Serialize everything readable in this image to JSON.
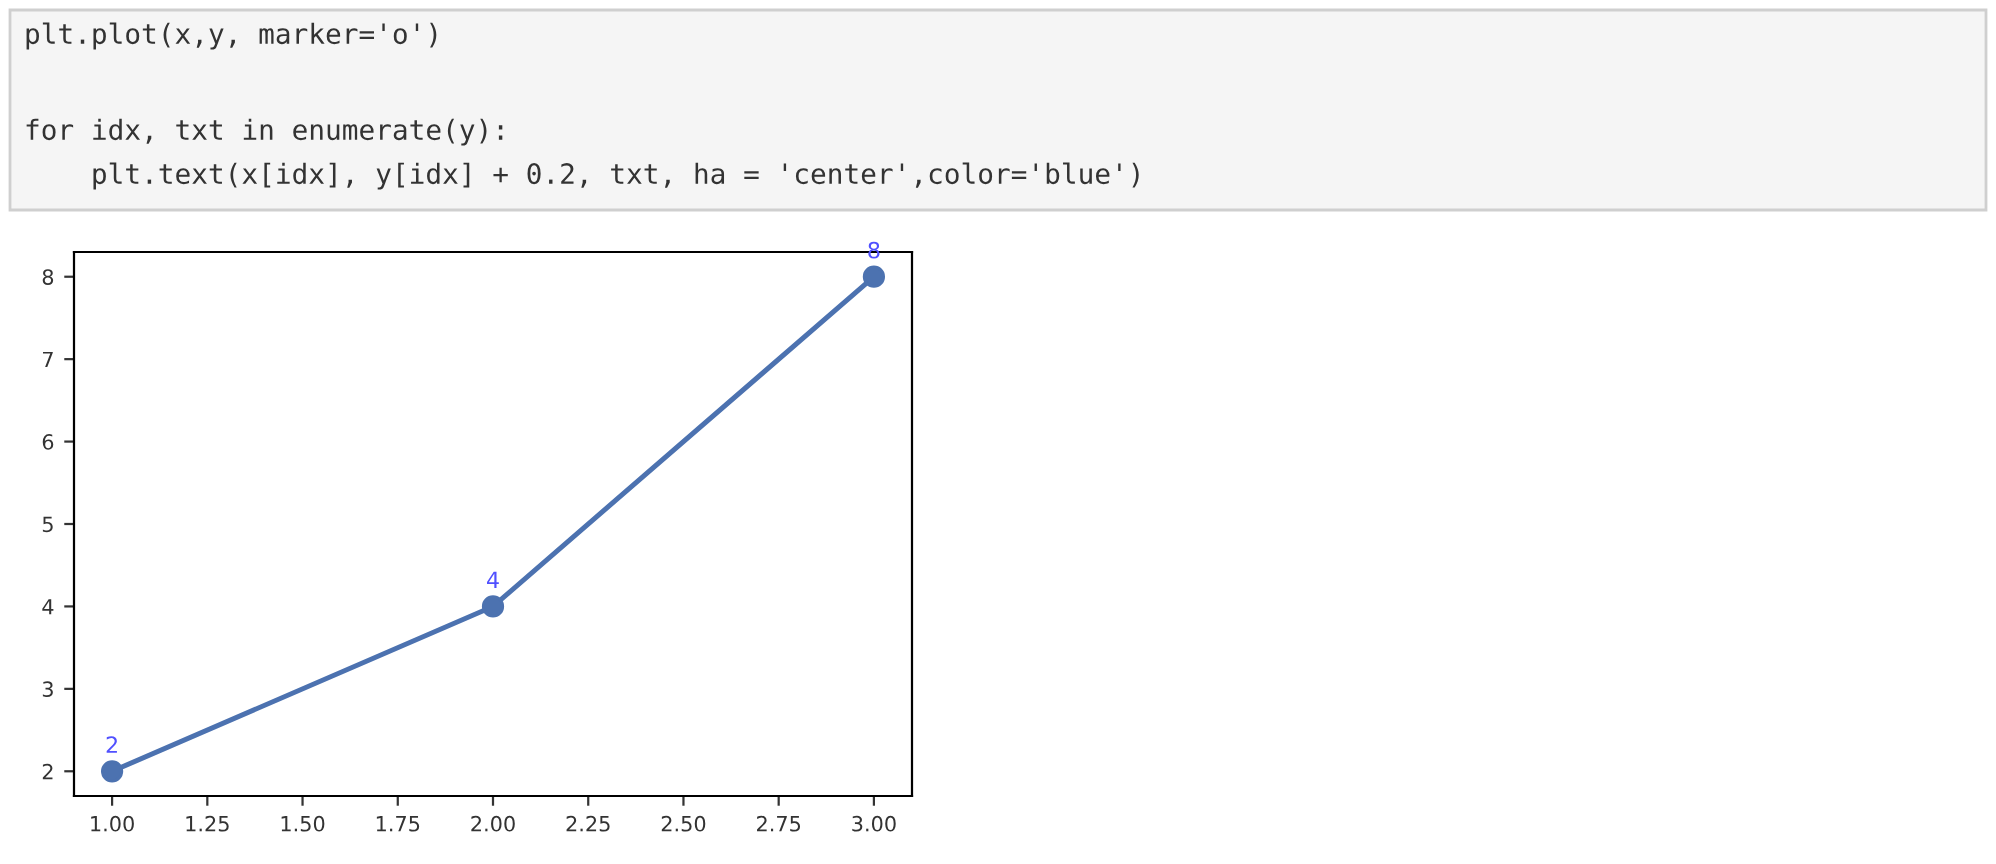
{
  "chart_data": {
    "type": "line",
    "x": [
      1,
      2,
      3
    ],
    "series": [
      {
        "color": "#4c72b0",
        "values": [
          2,
          4,
          8
        ]
      }
    ],
    "marker": "circle",
    "line_style": "solid",
    "data_labels": true,
    "grid": false,
    "xlim": [
      0.9,
      3.1
    ],
    "xticks": [
      {
        "value": 1,
        "label": "1.00"
      },
      {
        "value": 1.25,
        "label": "1.25"
      },
      {
        "value": 1.5,
        "label": "1.50"
      },
      {
        "value": 1.75,
        "label": "1.75"
      },
      {
        "value": 2,
        "label": "2.00"
      },
      {
        "value": 2.25,
        "label": "2.25"
      },
      {
        "value": 2.5,
        "label": "2.50"
      },
      {
        "value": 2.75,
        "label": "2.75"
      },
      {
        "value": 3,
        "label": "3.00"
      }
    ],
    "ylim": [
      1.7,
      8.3
    ],
    "yticks": [
      2,
      3,
      4,
      5,
      6,
      7,
      8
    ],
    "annotations": [
      "plt.plot(x,y, marker='o')",
      "for idx, txt in enumerate(y):",
      "    plt.text(x[idx], y[idx] + 0.2, txt, ha = 'center',color='blue')"
    ]
  }
}
